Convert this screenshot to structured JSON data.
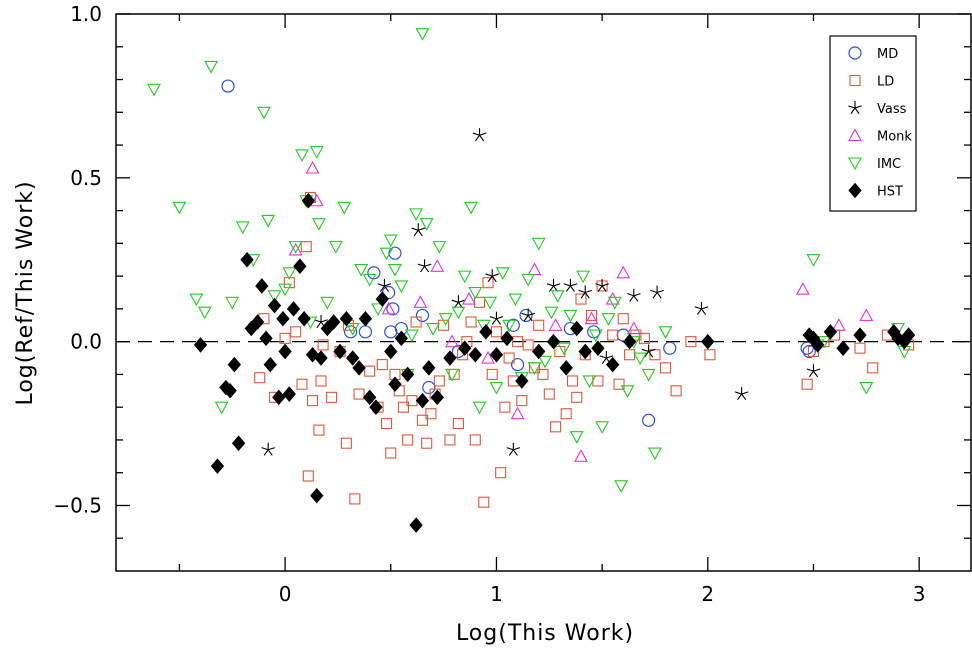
{
  "chart_data": {
    "type": "scatter",
    "title": "",
    "xlabel": "Log(This Work)",
    "ylabel": "Log(Ref/This Work)",
    "xlim": [
      -0.8,
      3.25
    ],
    "ylim": [
      -0.7,
      1.0
    ],
    "x_ticks": [
      0,
      1,
      2,
      3
    ],
    "x_tick_labels": [
      "0",
      "1",
      "2",
      "3"
    ],
    "y_ticks": [
      -0.5,
      0,
      0.5,
      1.0
    ],
    "y_tick_labels": [
      "−0.5",
      "0.0",
      "0.5",
      "1.0"
    ],
    "reference_line": {
      "y": 0,
      "style": "dashed"
    },
    "grid": false,
    "legend_position": "top-right",
    "series": [
      {
        "name": "MD",
        "marker": "circle",
        "color": "#2a4fd6",
        "x": [
          -0.27,
          0.31,
          0.38,
          0.42,
          0.49,
          0.5,
          0.51,
          0.52,
          0.55,
          0.65,
          0.68,
          0.82,
          1.08,
          1.1,
          1.14,
          1.35,
          1.46,
          1.6,
          1.72,
          1.82,
          2.47,
          2.48
        ],
        "y": [
          0.78,
          0.03,
          0.03,
          0.21,
          0.15,
          0.03,
          0.1,
          0.27,
          0.04,
          0.08,
          -0.14,
          -0.03,
          0.05,
          -0.07,
          0.08,
          0.04,
          0.03,
          0.02,
          -0.24,
          -0.02,
          -0.02,
          -0.03
        ]
      },
      {
        "name": "LD",
        "marker": "square",
        "color": "#e0573a",
        "x": [
          -0.12,
          -0.1,
          -0.05,
          0.0,
          0.02,
          0.05,
          0.08,
          0.1,
          0.11,
          0.12,
          0.13,
          0.16,
          0.17,
          0.18,
          0.22,
          0.26,
          0.29,
          0.3,
          0.33,
          0.35,
          0.4,
          0.44,
          0.46,
          0.48,
          0.5,
          0.52,
          0.54,
          0.56,
          0.58,
          0.6,
          0.62,
          0.65,
          0.67,
          0.69,
          0.71,
          0.73,
          0.75,
          0.78,
          0.8,
          0.82,
          0.84,
          0.86,
          0.88,
          0.9,
          0.92,
          0.94,
          0.96,
          0.98,
          1.0,
          1.02,
          1.04,
          1.06,
          1.08,
          1.1,
          1.12,
          1.15,
          1.18,
          1.2,
          1.22,
          1.25,
          1.28,
          1.3,
          1.33,
          1.36,
          1.38,
          1.4,
          1.42,
          1.45,
          1.48,
          1.5,
          1.55,
          1.58,
          1.6,
          1.63,
          1.66,
          1.7,
          1.75,
          1.8,
          1.85,
          1.92,
          2.01,
          2.47,
          2.5,
          2.55,
          2.6,
          2.72,
          2.78,
          2.85,
          2.95
        ],
        "y": [
          -0.11,
          0.07,
          -0.17,
          0.01,
          0.18,
          0.03,
          -0.13,
          0.29,
          -0.41,
          0.44,
          -0.18,
          -0.27,
          -0.12,
          -0.01,
          -0.17,
          -0.03,
          -0.31,
          0.05,
          -0.48,
          -0.16,
          -0.09,
          -0.2,
          -0.07,
          -0.25,
          -0.34,
          -0.1,
          -0.15,
          -0.2,
          -0.3,
          -0.18,
          0.06,
          -0.24,
          -0.31,
          -0.22,
          -0.16,
          -0.12,
          0.05,
          -0.3,
          -0.1,
          -0.25,
          -0.04,
          0.0,
          0.06,
          -0.3,
          0.12,
          -0.49,
          0.18,
          -0.1,
          0.03,
          -0.4,
          -0.2,
          -0.05,
          -0.12,
          0.0,
          -0.18,
          -0.01,
          -0.08,
          0.05,
          -0.1,
          -0.16,
          -0.26,
          -0.03,
          -0.22,
          -0.12,
          -0.17,
          0.13,
          -0.04,
          0.08,
          -0.12,
          0.17,
          0.02,
          -0.13,
          0.07,
          -0.04,
          0.02,
          0.01,
          -0.04,
          -0.08,
          -0.15,
          0.0,
          -0.04,
          -0.13,
          -0.03,
          0.0,
          0.02,
          -0.02,
          -0.08,
          0.02,
          -0.01
        ]
      },
      {
        "name": "Vass",
        "marker": "star",
        "color": "#000000",
        "x": [
          -0.08,
          0.17,
          0.47,
          0.63,
          0.66,
          0.82,
          0.92,
          0.98,
          1.0,
          1.08,
          1.15,
          1.27,
          1.35,
          1.42,
          1.5,
          1.52,
          1.65,
          1.72,
          1.76,
          1.97,
          2.16,
          2.5
        ],
        "y": [
          -0.33,
          0.06,
          0.17,
          0.34,
          0.23,
          0.12,
          0.63,
          0.2,
          0.07,
          -0.33,
          0.08,
          0.17,
          0.17,
          0.15,
          0.17,
          -0.05,
          0.14,
          -0.03,
          0.15,
          0.1,
          -0.16,
          -0.09
        ]
      },
      {
        "name": "Monk",
        "marker": "triangle-up",
        "color": "#e033d6",
        "x": [
          0.05,
          0.13,
          0.15,
          0.49,
          0.64,
          0.72,
          0.79,
          0.87,
          0.96,
          1.1,
          1.18,
          1.28,
          1.4,
          1.45,
          1.55,
          1.6,
          1.65,
          2.45,
          2.62,
          2.75
        ],
        "y": [
          0.28,
          0.53,
          0.43,
          0.1,
          0.12,
          0.23,
          0.0,
          0.13,
          -0.05,
          -0.22,
          0.22,
          0.05,
          -0.35,
          0.07,
          0.13,
          0.21,
          0.04,
          0.16,
          0.05,
          0.08
        ]
      },
      {
        "name": "IMC",
        "marker": "triangle-down",
        "color": "#1fcc1f",
        "x": [
          -0.62,
          -0.5,
          -0.42,
          -0.38,
          -0.35,
          -0.3,
          -0.25,
          -0.2,
          -0.15,
          -0.1,
          -0.08,
          -0.05,
          0.0,
          0.02,
          0.05,
          0.08,
          0.1,
          0.12,
          0.15,
          0.16,
          0.2,
          0.24,
          0.28,
          0.32,
          0.36,
          0.4,
          0.44,
          0.48,
          0.5,
          0.52,
          0.55,
          0.58,
          0.6,
          0.62,
          0.65,
          0.67,
          0.7,
          0.73,
          0.76,
          0.79,
          0.82,
          0.85,
          0.88,
          0.9,
          0.92,
          0.94,
          0.97,
          1.0,
          1.03,
          1.06,
          1.09,
          1.12,
          1.15,
          1.18,
          1.2,
          1.23,
          1.26,
          1.29,
          1.32,
          1.35,
          1.38,
          1.41,
          1.44,
          1.47,
          1.5,
          1.53,
          1.56,
          1.59,
          1.62,
          1.65,
          1.68,
          1.72,
          1.75,
          1.8,
          2.5,
          2.52,
          2.55,
          2.75,
          2.9,
          2.93
        ],
        "y": [
          0.77,
          0.41,
          0.13,
          0.09,
          0.84,
          -0.2,
          0.12,
          0.35,
          0.25,
          0.7,
          0.37,
          0.14,
          0.16,
          0.21,
          0.29,
          0.57,
          0.43,
          0.06,
          0.58,
          0.36,
          0.12,
          0.29,
          0.41,
          0.04,
          0.22,
          0.19,
          0.1,
          0.27,
          0.31,
          0.22,
          0.17,
          -0.1,
          0.02,
          0.39,
          0.94,
          0.36,
          0.04,
          0.29,
          0.07,
          -0.1,
          0.09,
          0.2,
          0.41,
          0.15,
          -0.2,
          0.05,
          0.12,
          -0.14,
          0.21,
          0.05,
          0.13,
          -0.11,
          0.19,
          -0.08,
          0.3,
          -0.06,
          0.09,
          0.14,
          -0.02,
          0.08,
          -0.29,
          0.2,
          -0.12,
          0.02,
          -0.26,
          0.07,
          0.12,
          -0.44,
          -0.15,
          0.0,
          -0.05,
          -0.1,
          -0.34,
          0.03,
          0.25,
          -0.01,
          0.0,
          -0.14,
          0.04,
          -0.03
        ]
      },
      {
        "name": "HST",
        "marker": "diamond",
        "color": "#000000",
        "x": [
          -0.4,
          -0.32,
          -0.28,
          -0.26,
          -0.24,
          -0.22,
          -0.18,
          -0.16,
          -0.13,
          -0.11,
          -0.09,
          -0.07,
          -0.05,
          -0.03,
          -0.01,
          0.0,
          0.02,
          0.04,
          0.07,
          0.09,
          0.11,
          0.13,
          0.15,
          0.17,
          0.2,
          0.23,
          0.26,
          0.29,
          0.32,
          0.35,
          0.38,
          0.4,
          0.43,
          0.46,
          0.5,
          0.52,
          0.55,
          0.58,
          0.62,
          0.65,
          0.68,
          0.72,
          0.78,
          0.85,
          0.9,
          0.95,
          1.0,
          1.05,
          1.12,
          1.2,
          1.27,
          1.33,
          1.38,
          1.42,
          1.48,
          1.55,
          1.63,
          2.0,
          2.48,
          2.5,
          2.52,
          2.58,
          2.64,
          2.72,
          2.88,
          2.9,
          2.93,
          2.95
        ],
        "y": [
          -0.01,
          -0.38,
          -0.14,
          -0.15,
          -0.07,
          -0.31,
          0.25,
          0.04,
          0.06,
          0.17,
          0.01,
          -0.07,
          0.11,
          -0.17,
          0.07,
          -0.03,
          -0.16,
          0.1,
          0.23,
          0.07,
          0.43,
          -0.04,
          -0.47,
          -0.05,
          0.04,
          0.06,
          -0.03,
          0.07,
          -0.05,
          -0.08,
          0.07,
          -0.17,
          -0.2,
          0.13,
          -0.03,
          -0.13,
          0.01,
          -0.1,
          -0.56,
          -0.18,
          -0.08,
          -0.17,
          -0.05,
          -0.02,
          -0.04,
          0.03,
          -0.04,
          0.01,
          -0.12,
          -0.03,
          0.0,
          -0.08,
          0.04,
          -0.03,
          -0.02,
          -0.07,
          0.0,
          0.0,
          0.02,
          0.01,
          -0.01,
          0.03,
          -0.02,
          0.02,
          0.03,
          0.01,
          0.0,
          0.02
        ]
      }
    ]
  }
}
